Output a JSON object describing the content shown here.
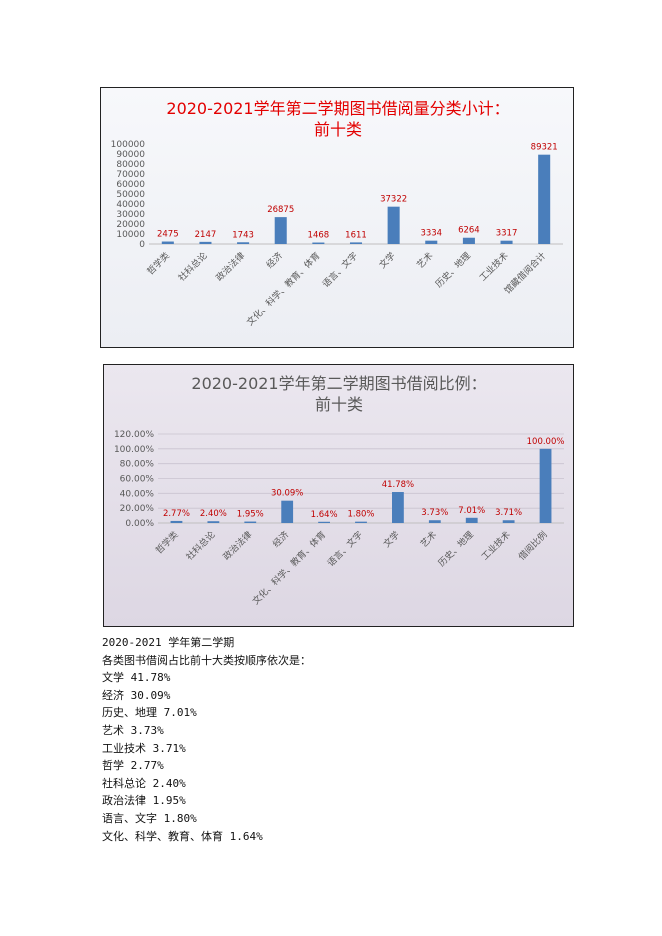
{
  "chart_data": [
    {
      "type": "bar",
      "title_lines": [
        "2020-2021学年第二学期图书借阅量分类小计：",
        "前十类"
      ],
      "title_color": "#e30000",
      "bar_color": "#4a7ebb",
      "label_color": "#c00000",
      "ylim": [
        0,
        100000
      ],
      "yticks": [
        "0",
        "10000",
        "20000",
        "30000",
        "40000",
        "50000",
        "60000",
        "70000",
        "80000",
        "90000",
        "100000"
      ],
      "grid": false,
      "legend": "none",
      "categories": [
        "哲学类",
        "社科总论",
        "政治法律",
        "经济",
        "文化、科学、教育、体育",
        "语言、文字",
        "文学",
        "艺术",
        "历史、地理",
        "工业技术",
        "馆藏借阅合计"
      ],
      "values": [
        2475,
        2147,
        1743,
        26875,
        1468,
        1611,
        37322,
        3334,
        6264,
        3317,
        89321
      ],
      "data_labels": [
        "2475",
        "2147",
        "1743",
        "26875",
        "1468",
        "1611",
        "37322",
        "3334",
        "6264",
        "3317",
        "89321"
      ]
    },
    {
      "type": "bar",
      "title_lines": [
        "2020-2021学年第二学期图书借阅比例：",
        "前十类"
      ],
      "title_color": "#595959",
      "bar_color": "#4a7ebb",
      "label_color": "#c00000",
      "ylim": [
        0,
        120
      ],
      "yticks": [
        "0.00%",
        "20.00%",
        "40.00%",
        "60.00%",
        "80.00%",
        "100.00%",
        "120.00%"
      ],
      "grid": true,
      "legend": "none",
      "categories": [
        "哲学类",
        "社科总论",
        "政治法律",
        "经济",
        "文化、科学、教育、体育",
        "语言、文字",
        "文学",
        "艺术",
        "历史、地理",
        "工业技术",
        "借阅比例"
      ],
      "values": [
        2.77,
        2.4,
        1.95,
        30.09,
        1.64,
        1.8,
        41.78,
        3.73,
        7.01,
        3.71,
        100.0
      ],
      "data_labels": [
        "2.77%",
        "2.40%",
        "1.95%",
        "30.09%",
        "1.64%",
        "1.80%",
        "41.78%",
        "3.73%",
        "7.01%",
        "3.71%",
        "100.00%"
      ]
    }
  ],
  "summary": {
    "heading": "2020-2021 学年第二学期",
    "intro": "各类图书借阅占比前十大类按顺序依次是：",
    "lines": [
      "文学 41.78%",
      "经济 30.09%",
      "历史、地理 7.01%",
      "艺术 3.73%",
      "工业技术 3.71%",
      "哲学 2.77%",
      "社科总论 2.40%",
      "政治法律 1.95%",
      "语言、文字 1.80%",
      "文化、科学、教育、体育 1.64%"
    ]
  }
}
